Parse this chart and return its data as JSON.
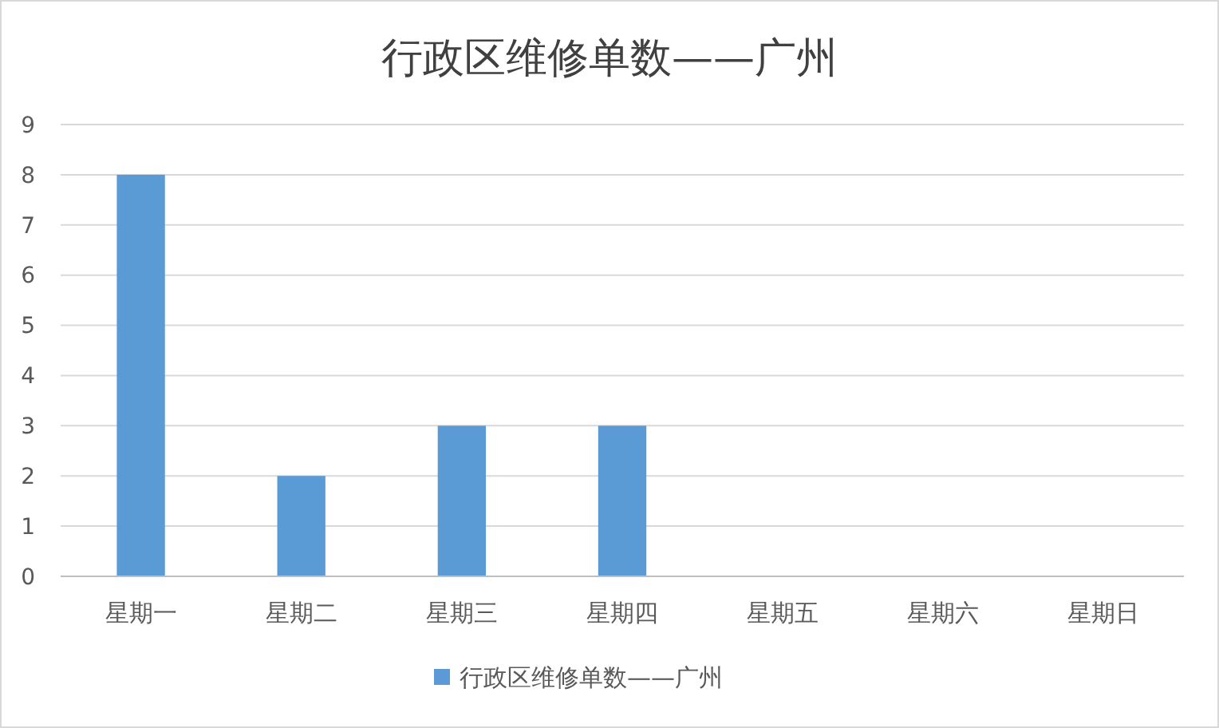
{
  "chart_data": {
    "type": "bar",
    "title": "行政区维修单数——广州",
    "categories": [
      "星期一",
      "星期二",
      "星期三",
      "星期四",
      "星期五",
      "星期六",
      "星期日"
    ],
    "series": [
      {
        "name": "行政区维修单数——广州",
        "color": "#5b9bd5",
        "values": [
          8,
          2,
          3,
          3,
          0,
          0,
          0
        ]
      }
    ],
    "ylim": [
      0,
      9
    ],
    "yticks": [
      0,
      1,
      2,
      3,
      4,
      5,
      6,
      7,
      8,
      9
    ],
    "grid": "y",
    "legend": "bottom"
  }
}
